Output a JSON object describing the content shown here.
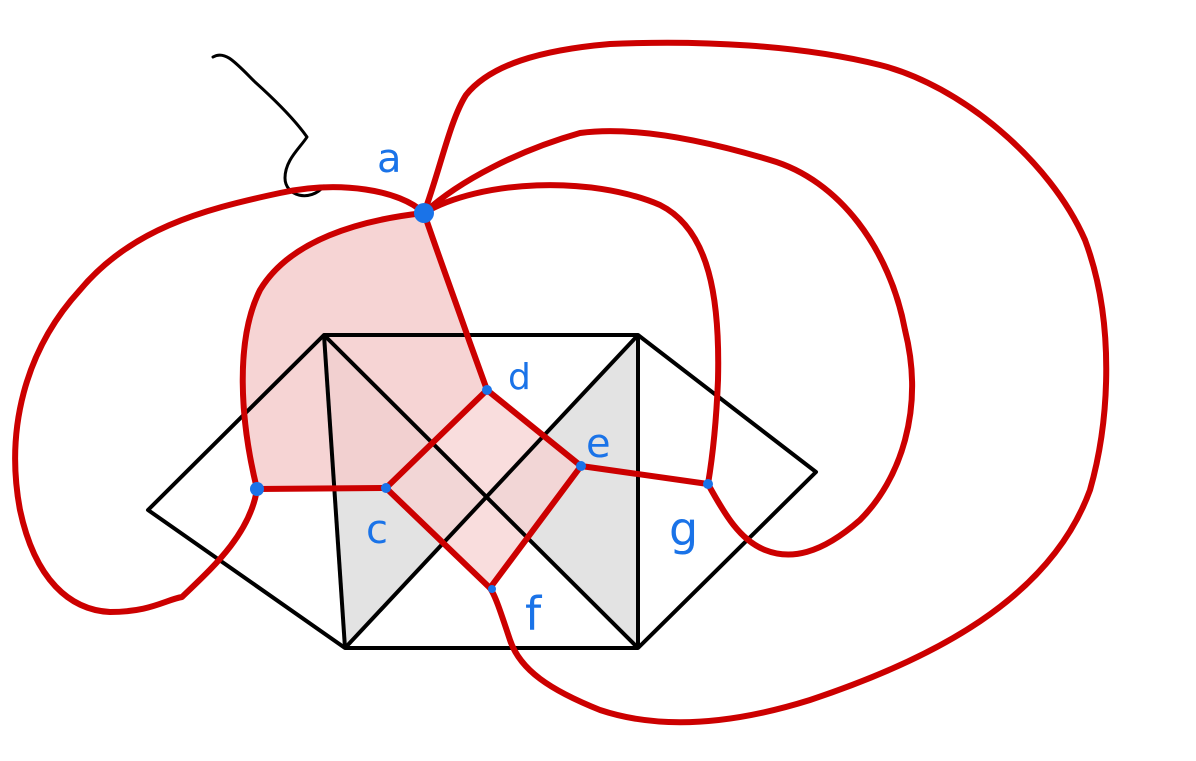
{
  "diagram": {
    "vertex_labels": {
      "a": "a",
      "c": "c",
      "d": "d",
      "e": "e",
      "f": "f",
      "g": "g"
    },
    "colors": {
      "outline": "#000000",
      "edge": "#cc0000",
      "vertex": "#1a73e8",
      "face_fill": "#f4cccc",
      "shade_fill": "#e3e3e3"
    }
  }
}
